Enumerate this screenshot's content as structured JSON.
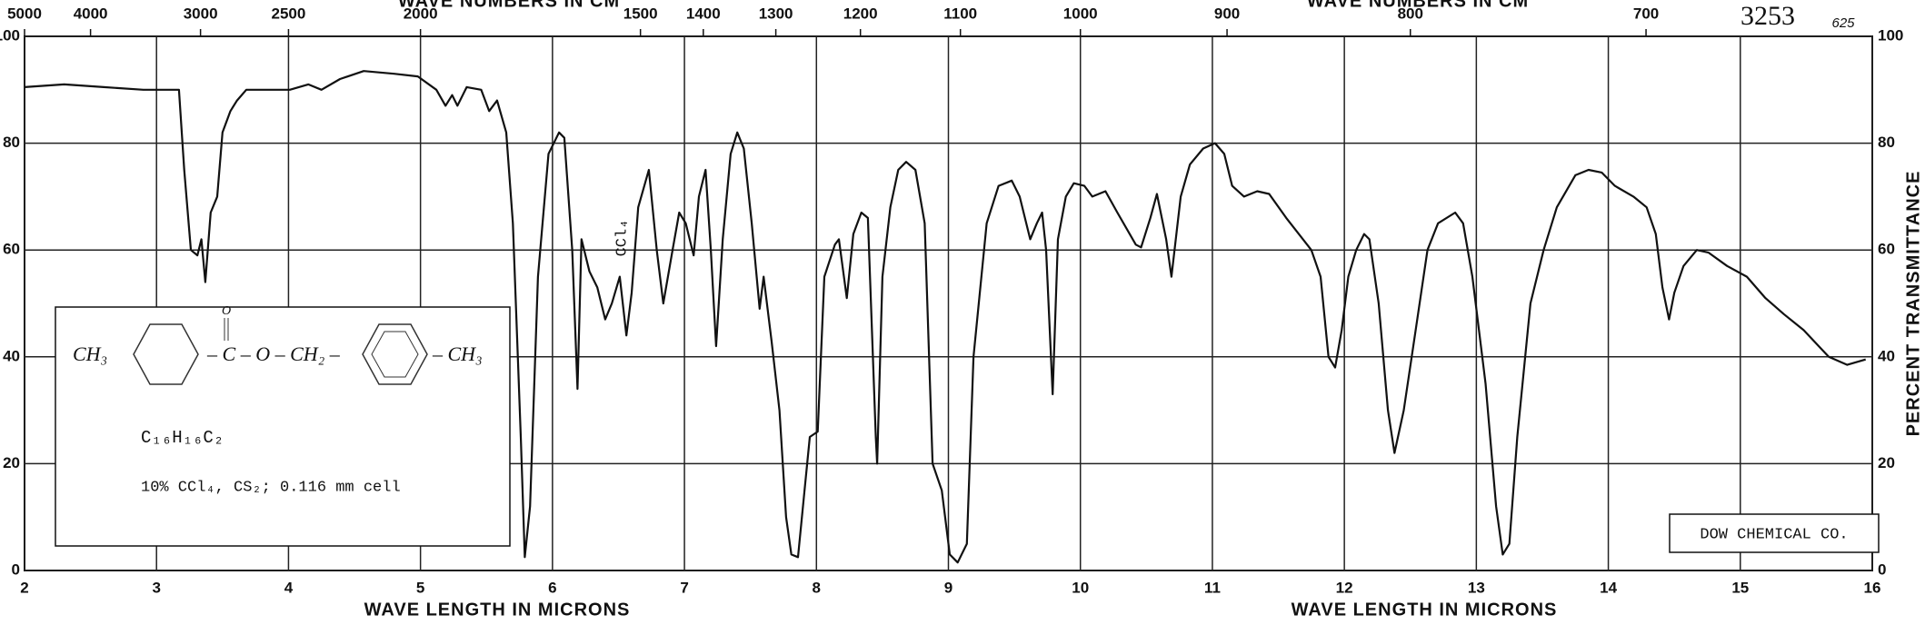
{
  "chart_data": {
    "type": "line",
    "top_label": "WAVE NUMBERS IN CM",
    "x_label": "WAVE LENGTH IN MICRONS",
    "y_label": "PERCENT TRANSMITTANCE",
    "serial": "3253",
    "serial_sub": "625",
    "annotation": "CCl₄",
    "formula": "C₁₆H₁₆C₂",
    "conditions": "10% CCl₄, CS₂; 0.116 mm cell",
    "structure": {
      "left": "CH₃",
      "carbonyl": "C",
      "oxo": "O",
      "ester": "O",
      "methylene": "CH₂",
      "right": "CH₃"
    },
    "credit": "DOW CHEMICAL CO.",
    "xlim": [
      2,
      16
    ],
    "ylim": [
      0,
      100
    ],
    "xticks": [
      2,
      3,
      4,
      5,
      6,
      7,
      8,
      9,
      10,
      11,
      12,
      13,
      14,
      15,
      16
    ],
    "yticks": [
      0,
      20,
      40,
      60,
      80,
      100
    ],
    "x2ticks": [
      5000,
      4000,
      3000,
      2500,
      2000,
      1500,
      1400,
      1300,
      1200,
      1100,
      1000,
      900,
      800,
      700
    ],
    "grid": true,
    "series": [
      {
        "name": "Transmittance",
        "color": "#111",
        "x": [
          2.0,
          2.3,
          2.6,
          2.9,
          3.17,
          3.21,
          3.26,
          3.31,
          3.34,
          3.37,
          3.41,
          3.46,
          3.5,
          3.56,
          3.61,
          3.68,
          3.82,
          4.01,
          4.15,
          4.25,
          4.39,
          4.57,
          4.8,
          4.98,
          5.12,
          5.19,
          5.24,
          5.28,
          5.35,
          5.46,
          5.52,
          5.58,
          5.65,
          5.7,
          5.76,
          5.79,
          5.83,
          5.89,
          5.97,
          6.05,
          6.09,
          6.15,
          6.19,
          6.22,
          6.28,
          6.34,
          6.4,
          6.45,
          6.51,
          6.56,
          6.6,
          6.65,
          6.73,
          6.79,
          6.84,
          6.91,
          6.96,
          7.01,
          7.07,
          7.11,
          7.16,
          7.2,
          7.24,
          7.29,
          7.35,
          7.4,
          7.45,
          7.51,
          7.57,
          7.6,
          7.66,
          7.72,
          7.77,
          7.81,
          7.86,
          7.91,
          7.95,
          8.01,
          8.06,
          8.14,
          8.17,
          8.23,
          8.28,
          8.34,
          8.39,
          8.45,
          8.46,
          8.5,
          8.56,
          8.62,
          8.68,
          8.75,
          8.82,
          8.88,
          8.95,
          9.01,
          9.07,
          9.14,
          9.19,
          9.29,
          9.38,
          9.48,
          9.54,
          9.62,
          9.67,
          9.71,
          9.74,
          9.79,
          9.83,
          9.89,
          9.95,
          10.03,
          10.09,
          10.19,
          10.28,
          10.42,
          10.46,
          10.53,
          10.58,
          10.65,
          10.69,
          10.76,
          10.83,
          10.93,
          11.02,
          11.09,
          11.15,
          11.24,
          11.34,
          11.43,
          11.56,
          11.75,
          11.82,
          11.88,
          11.93,
          11.98,
          12.03,
          12.09,
          12.15,
          12.19,
          12.26,
          12.33,
          12.38,
          12.45,
          12.54,
          12.63,
          12.71,
          12.84,
          12.9,
          12.97,
          13.07,
          13.15,
          13.2,
          13.25,
          13.31,
          13.41,
          13.51,
          13.61,
          13.75,
          13.85,
          13.95,
          14.05,
          14.19,
          14.29,
          14.36,
          14.41,
          14.46,
          14.5,
          14.57,
          14.67,
          14.76,
          14.9,
          15.05,
          15.19,
          15.33,
          15.48,
          15.67,
          15.81,
          15.95
        ],
        "values": [
          90.5,
          91,
          90.5,
          90,
          90,
          75,
          60,
          59,
          62,
          54,
          67,
          70,
          82,
          86,
          88,
          90,
          90,
          90,
          91,
          90,
          92,
          93.5,
          93,
          92.5,
          90,
          87,
          89,
          87,
          90.5,
          90,
          86,
          88,
          82,
          65,
          25,
          2.5,
          12,
          55,
          78,
          82,
          81,
          60,
          34,
          62,
          56,
          53,
          47,
          50,
          55,
          44,
          52,
          68,
          75,
          60,
          50,
          60,
          67,
          65,
          59,
          70,
          75,
          60,
          42,
          62,
          78,
          82,
          79,
          65,
          49,
          55,
          43,
          30,
          10,
          3,
          2.5,
          15,
          25,
          26,
          55,
          61,
          62,
          51,
          63,
          67,
          66,
          25,
          20,
          55,
          68,
          75,
          76.5,
          75,
          65,
          20,
          15,
          3,
          1.5,
          5,
          40,
          65,
          72,
          73,
          70,
          62,
          65,
          67,
          60,
          33,
          62,
          70,
          72.5,
          72,
          70,
          71,
          67,
          61,
          60.5,
          66,
          70.5,
          62,
          55,
          70,
          76,
          79,
          80,
          78,
          72,
          70,
          71,
          70.5,
          66,
          60,
          55,
          40,
          38,
          45,
          55,
          60,
          63,
          62,
          50,
          30,
          22,
          30,
          45,
          60,
          65,
          67,
          65,
          55,
          35,
          12,
          3,
          5,
          25,
          50,
          60,
          68,
          74,
          75,
          74.5,
          72,
          70,
          68,
          63,
          53,
          47,
          52,
          57,
          60,
          59.5,
          57,
          55,
          51,
          48,
          45,
          40,
          38.5,
          39.5
        ]
      }
    ]
  }
}
